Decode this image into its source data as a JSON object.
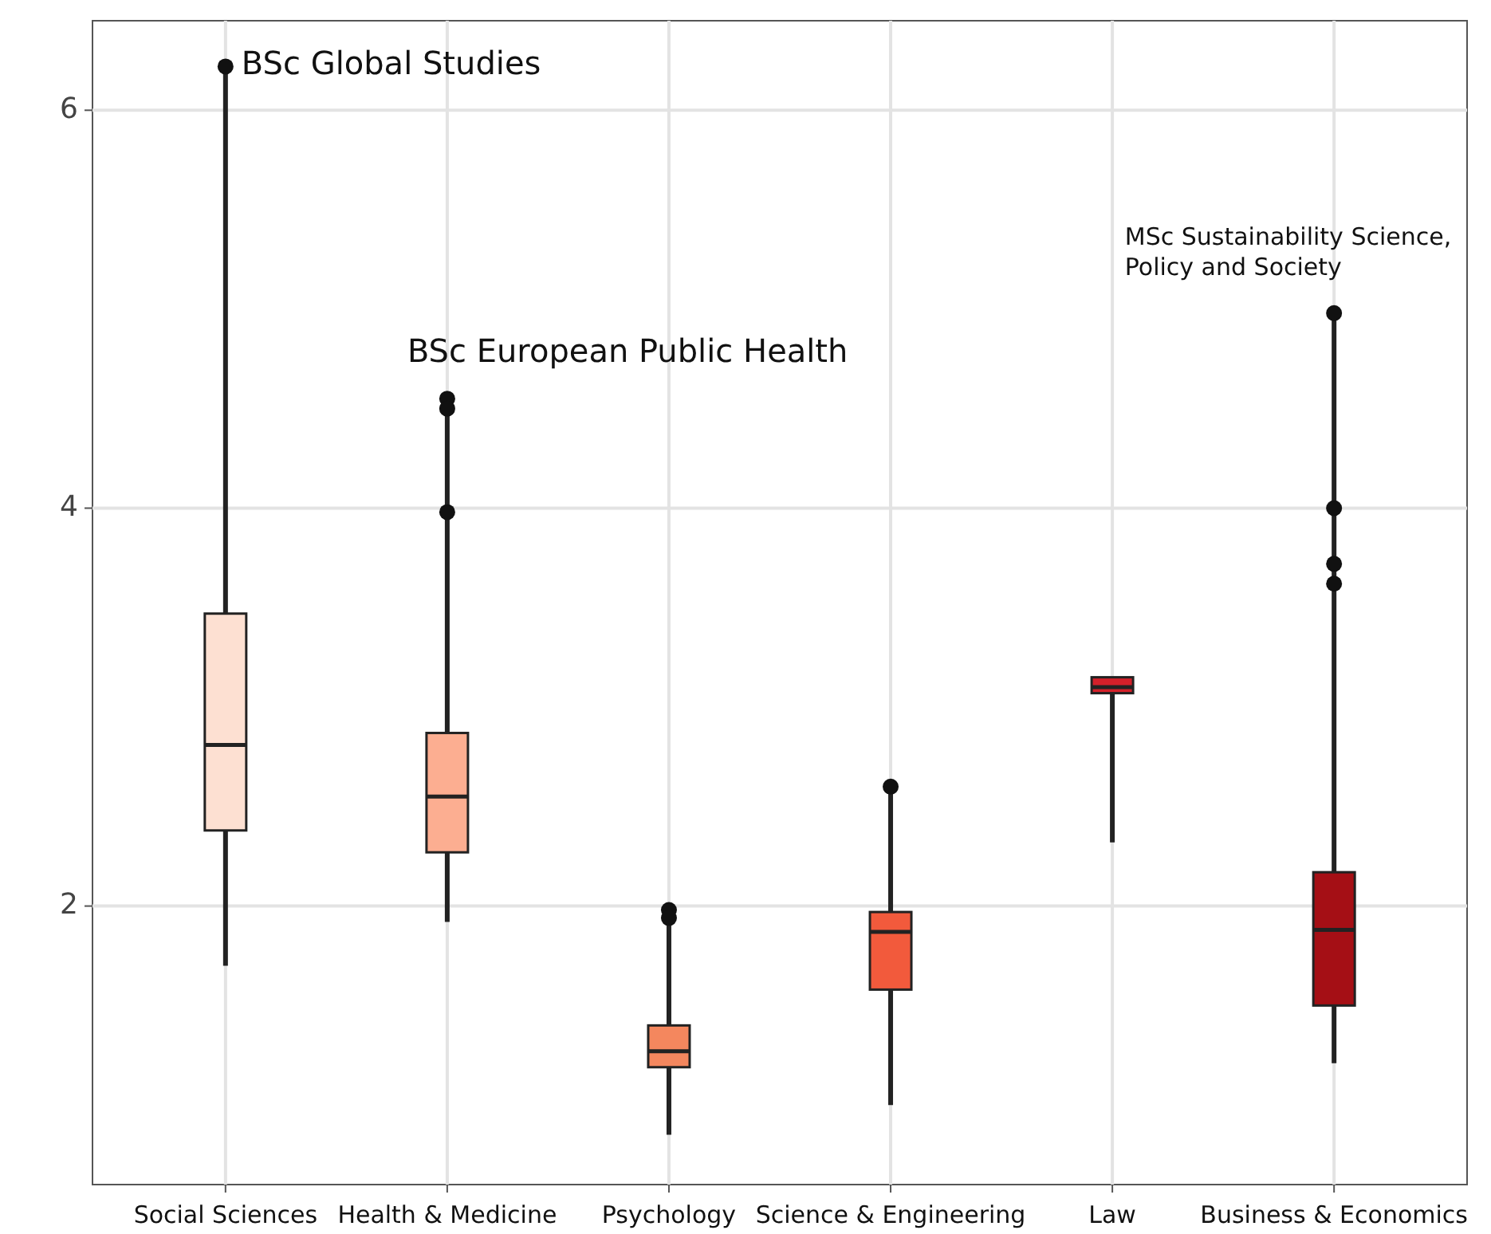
{
  "chart_data": {
    "type": "box",
    "categories": [
      "Social Sciences",
      "Health & Medicine",
      "Psychology",
      "Science & Engineering",
      "Law",
      "Business & Economics"
    ],
    "colors": [
      "#fde0d2",
      "#fcae91",
      "#f4875e",
      "#f25a3c",
      "#d3202a",
      "#a50f15"
    ],
    "boxes": [
      {
        "low": 1.7,
        "q1": 2.38,
        "median": 2.81,
        "q3": 3.47,
        "high": 6.22,
        "outliers": [
          6.22
        ]
      },
      {
        "low": 1.92,
        "q1": 2.27,
        "median": 2.55,
        "q3": 2.87,
        "high": 4.55,
        "outliers": [
          4.55,
          4.5,
          3.98
        ]
      },
      {
        "low": 0.85,
        "q1": 1.19,
        "median": 1.27,
        "q3": 1.4,
        "high": 1.98,
        "outliers": [
          1.98,
          1.94
        ]
      },
      {
        "low": 1.0,
        "q1": 1.58,
        "median": 1.87,
        "q3": 1.97,
        "high": 2.6,
        "outliers": [
          2.6
        ]
      },
      {
        "low": 2.32,
        "q1": 3.07,
        "median": 3.1,
        "q3": 3.15,
        "high": 3.15
      },
      {
        "low": 1.21,
        "q1": 1.5,
        "median": 1.88,
        "q3": 2.17,
        "high": 4.98,
        "outliers": [
          4.98,
          4.0,
          3.72,
          3.62
        ]
      }
    ],
    "ylim": [
      0.6,
      6.45
    ],
    "yticks": [
      2,
      4,
      6
    ],
    "grid": true,
    "annotations": [
      {
        "text": "BSc Global Studies",
        "x": "Social Sciences",
        "y": 6.22
      },
      {
        "text": "BSc European Public Health",
        "x": "Health & Medicine",
        "y": 4.55
      },
      {
        "text": "MSc Sustainability Science, Policy and Society",
        "x": "Business & Economics",
        "y": 4.98
      }
    ]
  }
}
